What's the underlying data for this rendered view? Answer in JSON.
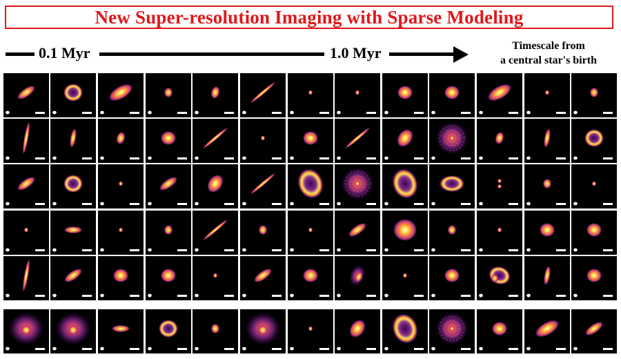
{
  "title": "New Super-resolution Imaging with Sparse Modeling",
  "timeline": {
    "label_start": "0.1 Myr",
    "label_end": "1.0 Myr",
    "note_line1": "Timescale from",
    "note_line2": "a central star's birth"
  },
  "colors": {
    "title_red": "#e0181b",
    "panel_background": "#000000",
    "colormap": [
      "#000000",
      "#3a0b5e",
      "#8a2b8a",
      "#d4456b",
      "#f58a3c",
      "#fde35a",
      "#fffbd0"
    ]
  },
  "grid": {
    "rows": 6,
    "cols": 13
  },
  "panels": [
    [
      "elongated-tilted",
      "ring",
      "elongated-tilted-broad",
      "compact",
      "compact-oval",
      "edge-on-thin",
      "compact-small",
      "compact-small",
      "disk-round",
      "disk-round",
      "elongated-tilted-broad",
      "compact-small",
      "compact"
    ],
    [
      "edge-on-vertical",
      "elongated-vertical",
      "compact-oval",
      "disk-round",
      "edge-on-thin",
      "compact-small",
      "disk-round",
      "edge-on-thin",
      "disk-tilted",
      "ring-multi",
      "compact-oval",
      "elongated-vertical",
      "ring"
    ],
    [
      "elongated-tilted",
      "ring",
      "compact-small",
      "elongated-tilted",
      "disk-tilted",
      "edge-on-thin",
      "ring-large",
      "ring-multi",
      "ring-large",
      "ring-wide",
      "compact-pair",
      "compact",
      "compact-small"
    ],
    [
      "compact-small",
      "elongated-horizontal",
      "compact-small",
      "compact",
      "edge-on-thin",
      "compact",
      "compact-small",
      "elongated-tilted",
      "disk-large",
      "compact",
      "compact-small",
      "disk-round",
      "disk-round"
    ],
    [
      "edge-on-vertical",
      "elongated-tilted",
      "disk-round",
      "disk-round",
      "compact-small",
      "elongated-tilted",
      "disk-round",
      "irregular",
      "compact-small",
      "disk-round",
      "ring-irregular",
      "elongated-vertical",
      "disk-round"
    ],
    [
      "diffuse",
      "diffuse",
      "elongated-horizontal",
      "ring",
      "compact",
      "diffuse",
      "compact-small",
      "disk-tilted",
      "ring-large",
      "ring-multi",
      "disk-round",
      "elongated-tilted-broad",
      "elongated-tilted"
    ]
  ]
}
